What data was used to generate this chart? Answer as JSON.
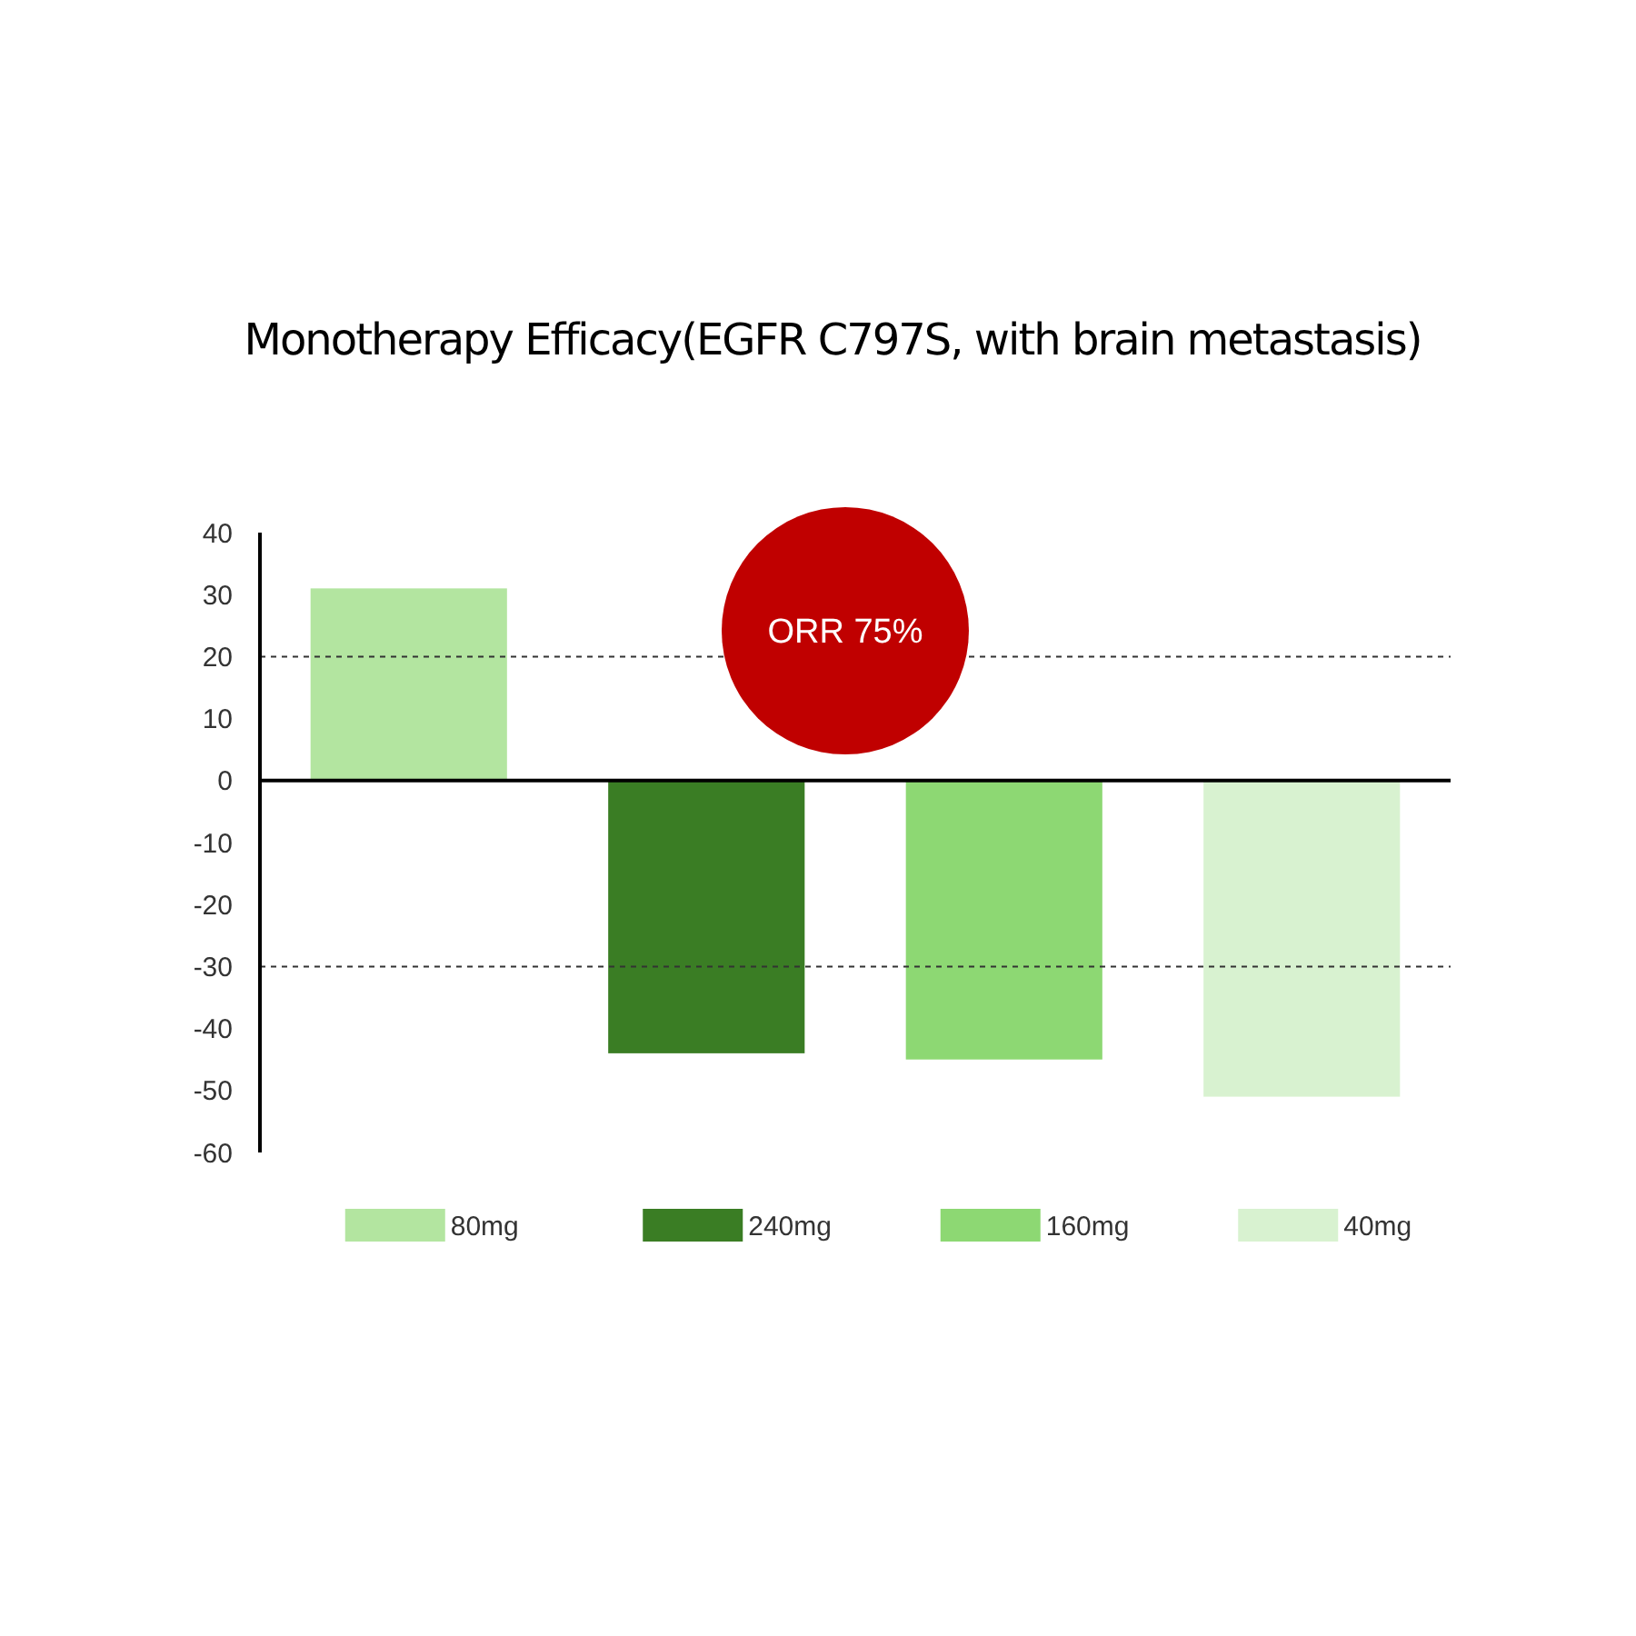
{
  "chart_data": {
    "type": "bar",
    "title": "Monotherapy Efficacy(EGFR C797S, with brain metastasis)",
    "categories": [
      null,
      null,
      null,
      null
    ],
    "series": [
      {
        "name": "80mg",
        "color": "#b3e5a0",
        "values": [
          31,
          null,
          null,
          null
        ]
      },
      {
        "name": "240mg",
        "color": "#3a7d24",
        "values": [
          null,
          -44,
          null,
          null
        ]
      },
      {
        "name": "160mg",
        "color": "#8dd873",
        "values": [
          null,
          null,
          -45,
          null
        ]
      },
      {
        "name": "40mg",
        "color": "#d8f2d0",
        "values": [
          null,
          null,
          null,
          -51
        ]
      }
    ],
    "ylim": [
      -60,
      40
    ],
    "yticks": [
      -60,
      -50,
      -40,
      -30,
      -20,
      -10,
      0,
      10,
      20,
      30,
      40
    ],
    "ref_lines": [
      {
        "axis": "y",
        "value": 20,
        "line_style": "dashed"
      },
      {
        "axis": "y",
        "value": -30,
        "line_style": "dashed"
      }
    ],
    "annotations": [
      "ORR 75%"
    ],
    "tick_labels": "y",
    "legend": "bottom",
    "grid": false
  }
}
